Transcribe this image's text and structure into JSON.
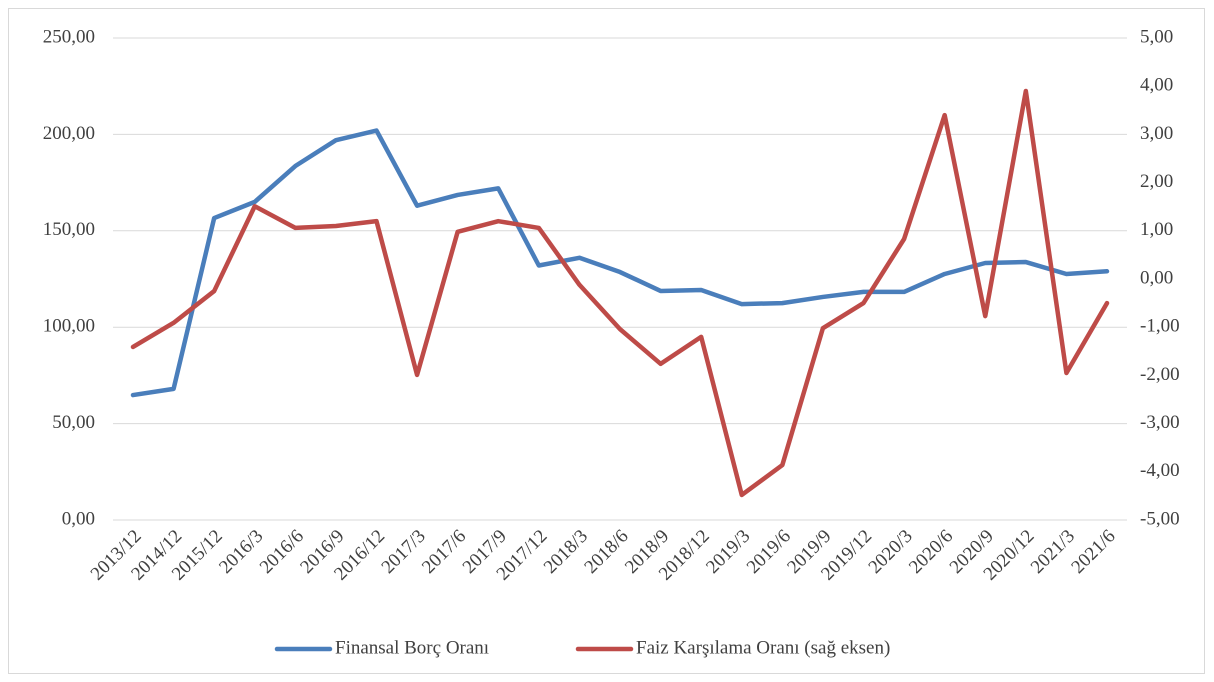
{
  "chart_data": {
    "type": "line",
    "categories": [
      "2013/12",
      "2014/12",
      "2015/12",
      "2016/3",
      "2016/6",
      "2016/9",
      "2016/12",
      "2017/3",
      "2017/6",
      "2017/9",
      "2017/12",
      "2018/3",
      "2018/6",
      "2018/9",
      "2018/12",
      "2019/3",
      "2019/6",
      "2019/9",
      "2019/12",
      "2020/3",
      "2020/6",
      "2020/9",
      "2020/12",
      "2021/3",
      "2021/6"
    ],
    "series": [
      {
        "name": "Finansal Borç Oranı",
        "color": "#4a7ebb",
        "values": [
          64.8,
          68,
          156.6,
          165,
          183.6,
          197,
          202,
          163,
          168.6,
          172,
          132,
          136,
          128.6,
          118.8,
          119.3,
          112,
          112.5,
          115.7,
          118.3,
          118.3,
          127.6,
          133.3,
          133.8,
          127.6,
          129
        ]
      },
      {
        "name": "Faiz Karşılama Oranı (sağ eksen)",
        "color": "#be4b48",
        "axis": "y2",
        "values": [
          -1.41,
          -0.91,
          -0.25,
          1.51,
          1.06,
          1.1,
          1.2,
          -1.99,
          0.98,
          1.2,
          1.06,
          -0.12,
          -1.04,
          -1.76,
          -1.2,
          -4.48,
          -3.86,
          -1.02,
          -0.5,
          0.83,
          3.4,
          -0.77,
          3.9,
          -1.95,
          -0.5
        ]
      }
    ],
    "ylim": [
      0,
      250
    ],
    "yticks": [
      {
        "value": 0,
        "label": "0,00"
      },
      {
        "value": 50,
        "label": "50,00"
      },
      {
        "value": 100,
        "label": "100,00"
      },
      {
        "value": 150,
        "label": "150,00"
      },
      {
        "value": 200,
        "label": "200,00"
      },
      {
        "value": 250,
        "label": "250,00"
      }
    ],
    "y2lim": [
      -5,
      5
    ],
    "y2ticks": [
      {
        "value": -5,
        "label": "-5,00"
      },
      {
        "value": -4,
        "label": "-4,00"
      },
      {
        "value": -3,
        "label": "-3,00"
      },
      {
        "value": -2,
        "label": "-2,00"
      },
      {
        "value": -1,
        "label": "-1,00"
      },
      {
        "value": 0,
        "label": "0,00"
      },
      {
        "value": 1,
        "label": "1,00"
      },
      {
        "value": 2,
        "label": "2,00"
      },
      {
        "value": 3,
        "label": "3,00"
      },
      {
        "value": 4,
        "label": "4,00"
      },
      {
        "value": 5,
        "label": "5,00"
      }
    ],
    "grid": true,
    "legend": "bottom"
  }
}
